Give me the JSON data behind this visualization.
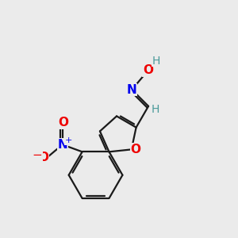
{
  "background_color": "#ebebeb",
  "atom_colors": {
    "C": "#1a1a1a",
    "H": "#4a9a9a",
    "N": "#0000ee",
    "O": "#ee0000"
  },
  "bond_color": "#1a1a1a",
  "bond_width": 1.6,
  "figsize": [
    3.0,
    3.0
  ],
  "dpi": 100
}
